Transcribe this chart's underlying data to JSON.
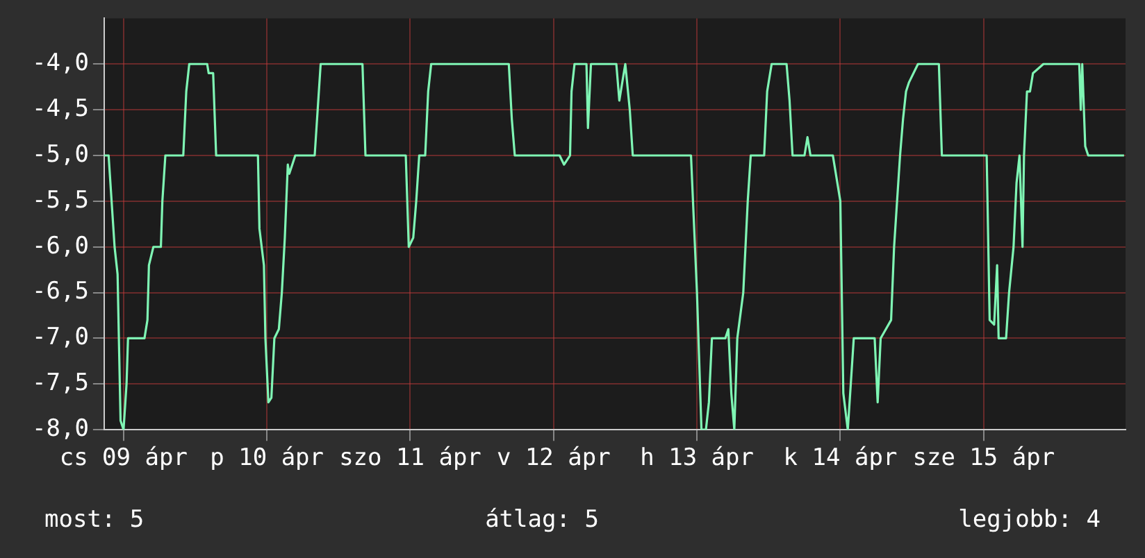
{
  "chart_data": {
    "type": "line",
    "color": "#7ff5b4",
    "x": [
      "--04-08T20:45",
      "--04-08T21:30",
      "--04-08T22:00",
      "--04-08T22:30",
      "--04-08T23:00",
      "--04-08T23:30",
      "--04-09T00:00",
      "--04-09T00:30",
      "--04-09T00:45",
      "--04-09T03:30",
      "--04-09T04:00",
      "--04-09T04:15",
      "--04-09T05:00",
      "--04-09T06:15",
      "--04-09T06:30",
      "--04-09T07:00",
      "--04-09T10:00",
      "--04-09T10:30",
      "--04-09T11:00",
      "--04-09T14:00",
      "--04-09T14:15",
      "--04-09T15:00",
      "--04-09T15:30",
      "--04-09T22:30",
      "--04-09T22:45",
      "--04-09T23:30",
      "--04-09T23:45",
      "--04-10T00:15",
      "--04-10T00:45",
      "--04-10T01:15",
      "--04-10T02:00",
      "--04-10T02:30",
      "--04-10T03:00",
      "--04-10T03:30",
      "--04-10T03:45",
      "--04-10T04:15",
      "--04-10T04:45",
      "--04-10T08:00",
      "--04-10T08:30",
      "--04-10T09:00",
      "--04-10T16:00",
      "--04-10T16:30",
      "--04-10T23:15",
      "--04-10T23:45",
      "--04-11T00:30",
      "--04-11T01:00",
      "--04-11T01:30",
      "--04-11T02:30",
      "--04-11T03:00",
      "--04-11T03:30",
      "--04-11T16:30",
      "--04-11T17:00",
      "--04-11T17:30",
      "--04-12T01:00",
      "--04-12T01:45",
      "--04-12T02:45",
      "--04-12T03:00",
      "--04-12T03:30",
      "--04-12T05:30",
      "--04-12T05:45",
      "--04-12T06:15",
      "--04-12T10:30",
      "--04-12T11:00",
      "--04-12T11:30",
      "--04-12T12:00",
      "--04-12T12:45",
      "--04-12T13:15",
      "--04-12T23:00",
      "--04-13T00:00",
      "--04-13T00:45",
      "--04-13T01:30",
      "--04-13T02:00",
      "--04-13T02:30",
      "--04-13T04:45",
      "--04-13T05:15",
      "--04-13T05:45",
      "--04-13T06:15",
      "--04-13T06:45",
      "--04-13T07:45",
      "--04-13T08:30",
      "--04-13T09:00",
      "--04-13T11:15",
      "--04-13T11:45",
      "--04-13T12:30",
      "--04-13T15:00",
      "--04-13T15:30",
      "--04-13T16:00",
      "--04-13T18:00",
      "--04-13T18:30",
      "--04-13T19:00",
      "--04-13T22:45",
      "--04-14T00:00",
      "--04-14T00:30",
      "--04-14T01:15",
      "--04-14T01:45",
      "--04-14T02:15",
      "--04-14T05:45",
      "--04-14T06:15",
      "--04-14T06:45",
      "--04-14T08:30",
      "--04-14T09:00",
      "--04-14T09:30",
      "--04-14T10:00",
      "--04-14T10:30",
      "--04-14T11:00",
      "--04-14T11:30",
      "--04-14T13:00",
      "--04-14T16:30",
      "--04-14T17:00",
      "--04-15T00:30",
      "--04-15T01:00",
      "--04-15T01:45",
      "--04-15T02:15",
      "--04-15T02:30",
      "--04-15T03:45",
      "--04-15T04:15",
      "--04-15T05:00",
      "--04-15T05:30",
      "--04-15T06:00",
      "--04-15T06:30",
      "--04-15T06:45",
      "--04-15T07:15",
      "--04-15T07:45",
      "--04-15T08:15",
      "--04-15T10:00",
      "--04-15T16:00",
      "--04-15T16:15",
      "--04-15T16:30",
      "--04-15T17:00",
      "--04-15T17:30",
      "--04-15T23:30"
    ],
    "values": [
      -5,
      -5,
      -5.5,
      -6,
      -6.3,
      -7.9,
      -8,
      -7.5,
      -7,
      -7,
      -6.8,
      -6.2,
      -6,
      -6,
      -5.5,
      -5,
      -5,
      -4.3,
      -4,
      -4,
      -4.1,
      -4.1,
      -5,
      -5,
      -5.8,
      -6.2,
      -7,
      -7.7,
      -7.65,
      -7,
      -6.9,
      -6.5,
      -5.9,
      -5.1,
      -5.2,
      -5.1,
      -5,
      -5,
      -4.5,
      -4,
      -4,
      -5,
      -5,
      -6,
      -5.9,
      -5.5,
      -5,
      -5,
      -4.3,
      -4,
      -4,
      -4.6,
      -5,
      -5,
      -5.1,
      -5,
      -4.3,
      -4,
      -4,
      -4.7,
      -4,
      -4,
      -4.4,
      -4.2,
      -4,
      -4.5,
      -5,
      -5,
      -6.5,
      -8,
      -8,
      -7.7,
      -7,
      -7,
      -6.9,
      -7.6,
      -8,
      -7,
      -6.5,
      -5.5,
      -5,
      -5,
      -4.3,
      -4,
      -4,
      -4.4,
      -5,
      -5,
      -4.8,
      -5,
      -5,
      -5.5,
      -7.6,
      -8,
      -7.5,
      -7,
      -7,
      -7.7,
      -7,
      -6.8,
      -6,
      -5.5,
      -5,
      -4.6,
      -4.3,
      -4.2,
      -4,
      -4,
      -5,
      -5,
      -6.8,
      -6.85,
      -6.2,
      -7,
      -7,
      -6.5,
      -6,
      -5.3,
      -5,
      -6,
      -5,
      -4.3,
      -4.3,
      -4.1,
      -4,
      -4,
      -4.5,
      -4,
      -4.9,
      -5,
      -5
    ],
    "xlim": [
      "--04-08T20:45",
      "--04-15T23:45"
    ],
    "xticks": [
      {
        "value": "--04-09T00:00",
        "label": "cs 09 ápr"
      },
      {
        "value": "--04-10T00:00",
        "label": "p 10 ápr"
      },
      {
        "value": "--04-11T00:00",
        "label": "szo 11 ápr"
      },
      {
        "value": "--04-12T00:00",
        "label": "v 12 ápr"
      },
      {
        "value": "--04-13T00:00",
        "label": "h 13 ápr"
      },
      {
        "value": "--04-14T00:00",
        "label": "k 14 ápr"
      },
      {
        "value": "--04-15T00:00",
        "label": "sze 15 ápr"
      }
    ],
    "ylim": [
      -8,
      -3.5
    ],
    "yticks": [
      {
        "value": -8,
        "label": "-8,0"
      },
      {
        "value": -7.5,
        "label": "-7,5"
      },
      {
        "value": -7,
        "label": "-7,0"
      },
      {
        "value": -6.5,
        "label": "-6,5"
      },
      {
        "value": -6,
        "label": "-6,0"
      },
      {
        "value": -5.5,
        "label": "-5,5"
      },
      {
        "value": -5,
        "label": "-5,0"
      },
      {
        "value": -4.5,
        "label": "-4,5"
      },
      {
        "value": -4,
        "label": "-4,0"
      }
    ],
    "grid": true,
    "legend": false,
    "marker": "none",
    "line_style": "solid",
    "annotations": [
      "most: 5",
      "átlag: 5",
      "legjobb: 4"
    ]
  }
}
